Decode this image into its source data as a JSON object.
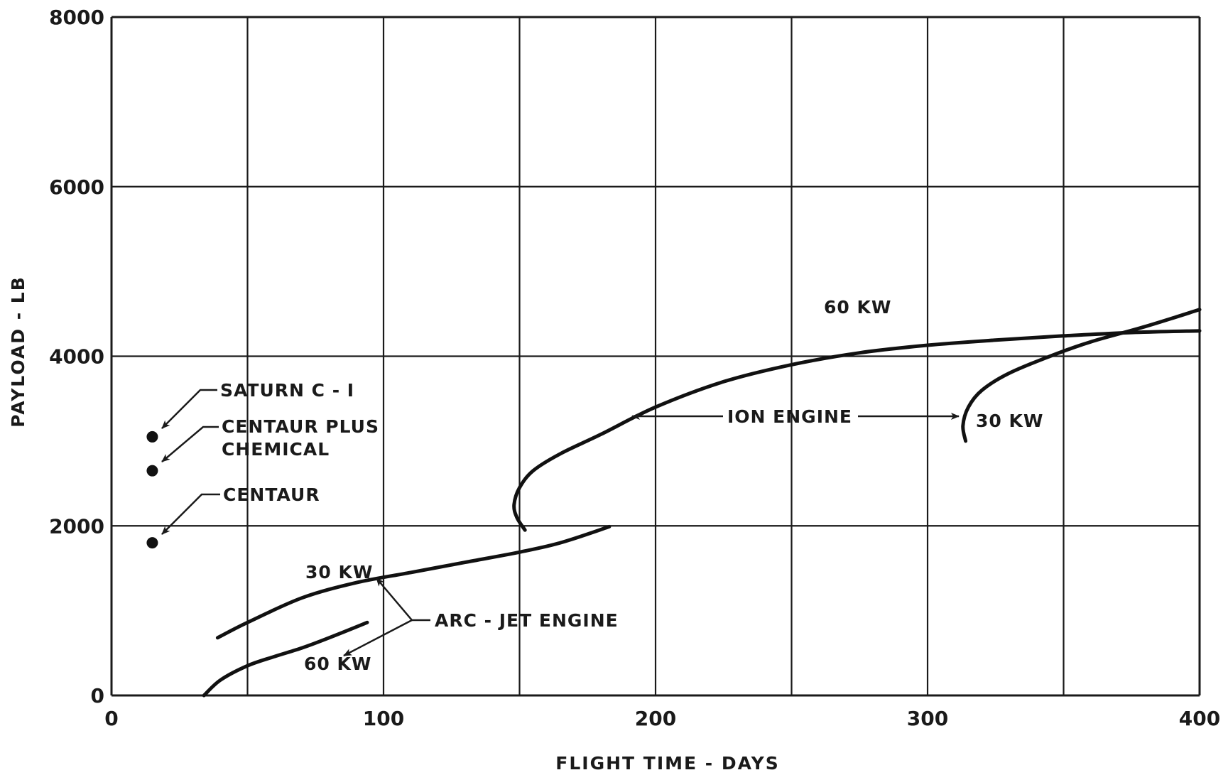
{
  "chart_data": {
    "type": "line",
    "title": "",
    "xlabel": "FLIGHT  TIME - DAYS",
    "ylabel": "PAYLOAD - LB",
    "xlim": [
      0,
      400
    ],
    "ylim": [
      0,
      8000
    ],
    "xticks": [
      0,
      100,
      200,
      300,
      400
    ],
    "yticks": [
      0,
      2000,
      4000,
      6000,
      8000
    ],
    "xtick_labels": [
      "0",
      "100",
      "200",
      "300",
      "400"
    ],
    "ytick_labels": [
      "0",
      "2000",
      "4000",
      "6000",
      "8000"
    ],
    "grid": true,
    "grid_x": [
      0,
      50,
      100,
      150,
      200,
      250,
      300,
      350,
      400
    ],
    "grid_y": [
      0,
      2000,
      4000,
      6000,
      8000
    ],
    "series": [
      {
        "name": "ARC - JET ENGINE 30 KW",
        "points": [
          [
            39,
            680
          ],
          [
            50,
            860
          ],
          [
            70,
            1150
          ],
          [
            90,
            1330
          ],
          [
            110,
            1450
          ],
          [
            130,
            1570
          ],
          [
            150,
            1690
          ],
          [
            165,
            1800
          ],
          [
            183,
            1990
          ]
        ]
      },
      {
        "name": "ARC - JET ENGINE 60 KW",
        "points": [
          [
            34,
            0
          ],
          [
            40,
            180
          ],
          [
            50,
            350
          ],
          [
            60,
            460
          ],
          [
            70,
            560
          ],
          [
            80,
            680
          ],
          [
            94,
            860
          ]
        ]
      },
      {
        "name": "ION ENGINE 60 KW",
        "points": [
          [
            152,
            1950
          ],
          [
            149,
            2100
          ],
          [
            148,
            2250
          ],
          [
            150,
            2450
          ],
          [
            155,
            2650
          ],
          [
            165,
            2850
          ],
          [
            180,
            3080
          ],
          [
            200,
            3400
          ],
          [
            225,
            3700
          ],
          [
            250,
            3900
          ],
          [
            275,
            4040
          ],
          [
            300,
            4130
          ],
          [
            325,
            4190
          ],
          [
            350,
            4240
          ],
          [
            375,
            4280
          ],
          [
            400,
            4300
          ]
        ]
      },
      {
        "name": "ION ENGINE 30 KW",
        "points": [
          [
            314,
            3000
          ],
          [
            313,
            3180
          ],
          [
            315,
            3400
          ],
          [
            320,
            3600
          ],
          [
            330,
            3800
          ],
          [
            345,
            4000
          ],
          [
            360,
            4170
          ],
          [
            380,
            4350
          ],
          [
            400,
            4550
          ]
        ]
      }
    ],
    "points": [
      {
        "name": "SATURN  C - I",
        "x": 15,
        "y": 3050
      },
      {
        "name": "CENTAUR PLUS CHEMICAL",
        "x": 15,
        "y": 2650
      },
      {
        "name": "CENTAUR",
        "x": 15,
        "y": 1800
      }
    ],
    "annotations": [
      {
        "id": "saturn",
        "lines": [
          "SATURN  C - I"
        ]
      },
      {
        "id": "centaur-plus",
        "lines": [
          "CENTAUR PLUS",
          "CHEMICAL"
        ]
      },
      {
        "id": "centaur",
        "lines": [
          "CENTAUR"
        ]
      },
      {
        "id": "ion-60",
        "lines": [
          "60 KW"
        ]
      },
      {
        "id": "ion-engine",
        "lines": [
          "ION  ENGINE"
        ]
      },
      {
        "id": "ion-30",
        "lines": [
          "30 KW"
        ]
      },
      {
        "id": "arc-30",
        "lines": [
          "30 KW"
        ]
      },
      {
        "id": "arc-jet",
        "lines": [
          "ARC - JET  ENGINE"
        ]
      },
      {
        "id": "arc-60",
        "lines": [
          "60 KW"
        ]
      }
    ]
  }
}
